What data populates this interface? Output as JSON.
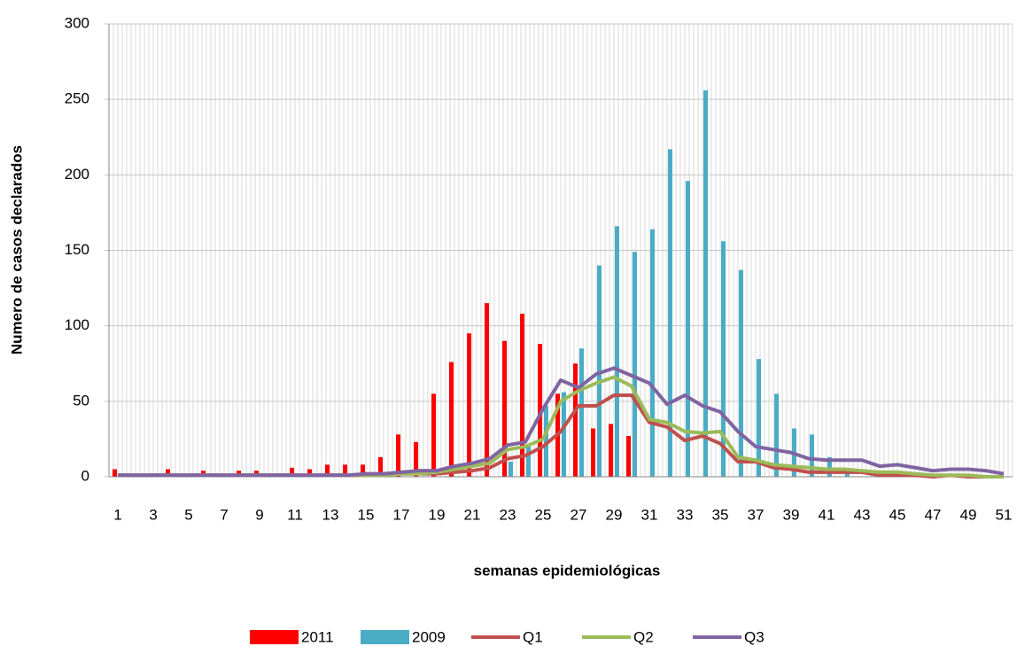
{
  "chart_data": {
    "type": "bar_line",
    "xlabel": "semanas epidemiológicas",
    "ylabel": "Numero de casos declarados",
    "categories": [
      1,
      null,
      3,
      null,
      5,
      null,
      7,
      null,
      9,
      null,
      11,
      null,
      13,
      null,
      15,
      null,
      17,
      null,
      19,
      null,
      21,
      null,
      23,
      null,
      25,
      null,
      27,
      null,
      29,
      null,
      31,
      null,
      33,
      null,
      35,
      null,
      37,
      null,
      39,
      null,
      41,
      null,
      43,
      null,
      45,
      null,
      47,
      null,
      49,
      null,
      51
    ],
    "ylim": [
      0,
      300
    ],
    "yticks": [
      0,
      50,
      100,
      150,
      200,
      250,
      300
    ],
    "grid": true,
    "series": [
      {
        "name": "2011",
        "kind": "bar",
        "color": "#ff0000",
        "values": [
          5,
          0,
          0,
          5,
          0,
          4,
          0,
          4,
          4,
          0,
          6,
          5,
          8,
          8,
          8,
          13,
          28,
          23,
          55,
          76,
          95,
          115,
          90,
          108,
          88,
          55,
          75,
          32,
          35,
          27,
          0,
          0,
          0,
          0,
          0,
          0,
          0,
          0,
          0,
          0,
          0,
          0,
          0,
          0,
          0,
          0,
          0,
          0,
          0,
          0,
          0
        ]
      },
      {
        "name": "2009",
        "kind": "bar",
        "color": "#4bacc6",
        "values": [
          0,
          0,
          0,
          0,
          0,
          0,
          0,
          0,
          0,
          0,
          0,
          0,
          0,
          0,
          0,
          0,
          0,
          0,
          0,
          0,
          0,
          0,
          10,
          20,
          47,
          56,
          85,
          140,
          166,
          149,
          164,
          217,
          196,
          256,
          156,
          137,
          78,
          55,
          32,
          28,
          13,
          5,
          0,
          0,
          0,
          0,
          0,
          0,
          0,
          0,
          0
        ]
      },
      {
        "name": "Q1",
        "kind": "line",
        "color": "#c0504d",
        "values": [
          1,
          1,
          1,
          1,
          1,
          1,
          1,
          1,
          1,
          1,
          1,
          1,
          1,
          1,
          1,
          2,
          2,
          2,
          2,
          3,
          4,
          6,
          12,
          14,
          20,
          30,
          47,
          47,
          54,
          54,
          36,
          33,
          24,
          27,
          22,
          10,
          10,
          6,
          5,
          3,
          3,
          3,
          3,
          1,
          1,
          1,
          0,
          1,
          0,
          0,
          0
        ]
      },
      {
        "name": "Q2",
        "kind": "line",
        "color": "#9bbb59",
        "values": [
          1,
          1,
          1,
          1,
          1,
          1,
          1,
          1,
          1,
          1,
          1,
          1,
          1,
          1,
          1,
          1,
          2,
          2,
          3,
          5,
          7,
          9,
          18,
          20,
          25,
          50,
          57,
          62,
          66,
          60,
          38,
          36,
          30,
          29,
          30,
          13,
          11,
          8,
          7,
          6,
          5,
          5,
          4,
          3,
          3,
          2,
          1,
          1,
          1,
          0,
          0
        ]
      },
      {
        "name": "Q3",
        "kind": "line",
        "color": "#8064a2",
        "values": [
          1,
          1,
          1,
          1,
          1,
          1,
          1,
          1,
          1,
          1,
          1,
          1,
          1,
          1,
          2,
          2,
          3,
          4,
          4,
          7,
          9,
          12,
          21,
          23,
          45,
          64,
          59,
          68,
          72,
          67,
          62,
          48,
          54,
          47,
          43,
          30,
          20,
          18,
          16,
          12,
          11,
          11,
          11,
          7,
          8,
          6,
          4,
          5,
          5,
          4,
          2
        ]
      }
    ]
  }
}
